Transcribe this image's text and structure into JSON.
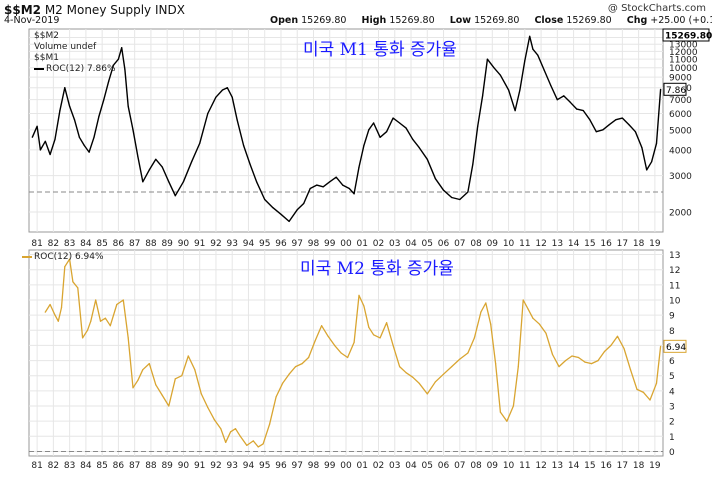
{
  "header": {
    "symbol": "$$M2",
    "name": "M2 Money Supply  INDX",
    "date": "4-Nov-2019",
    "brand": "@ StockCharts.com",
    "open_label": "Open",
    "open": "15269.80",
    "high_label": "High",
    "high": "15269.80",
    "low_label": "Low",
    "low": "15269.80",
    "close_label": "Close",
    "close": "15269.80",
    "chg_label": "Chg",
    "chg": "+25.00 (+0.16%)"
  },
  "legend_top": {
    "line1": "$$M2",
    "line2": "Volume undef",
    "line3": "$$M1",
    "line4": "ROC(12) 7.86%"
  },
  "legend_bottom": {
    "line1": "ROC(12) 6.94%"
  },
  "annotations": {
    "top": "미국 M1 통화 증가율",
    "bottom": "미국 M2 통화 증가율"
  },
  "colors": {
    "top_series": "#000000",
    "bottom_series": "#d9a531",
    "ref_line": "#888888",
    "grid": "#e6e6e6",
    "last_box_top": "#000000",
    "last_box_bottom": "#d9a531",
    "annotation": "#1a1aff"
  },
  "chart_data": [
    {
      "type": "line",
      "series_name": "ROC(12) 7.86%",
      "y_scale": "log",
      "yticks": [
        2000,
        3000,
        4000,
        5000,
        6000,
        7000,
        8000,
        9000,
        10000,
        11000,
        12000,
        13000,
        14000
      ],
      "ylim": [
        1600,
        15400
      ],
      "x_tick_labels": [
        "81",
        "82",
        "83",
        "84",
        "85",
        "86",
        "87",
        "88",
        "89",
        "90",
        "91",
        "92",
        "93",
        "94",
        "95",
        "96",
        "97",
        "98",
        "99",
        "00",
        "01",
        "02",
        "03",
        "04",
        "05",
        "06",
        "07",
        "08",
        "09",
        "10",
        "11",
        "12",
        "13",
        "14",
        "15",
        "16",
        "17",
        "18",
        "19"
      ],
      "xlim": [
        1981.0,
        2020.0
      ],
      "reference_line": 2500,
      "last_value_box": "15269.80",
      "last_value_label": "7.86",
      "x": [
        1981.2,
        1981.5,
        1981.7,
        1982.0,
        1982.3,
        1982.6,
        1982.9,
        1983.2,
        1983.5,
        1983.8,
        1984.1,
        1984.4,
        1984.7,
        1985.0,
        1985.3,
        1985.6,
        1985.9,
        1986.2,
        1986.5,
        1986.7,
        1986.9,
        1987.1,
        1987.4,
        1987.7,
        1988.0,
        1988.4,
        1988.8,
        1989.2,
        1989.6,
        1990.0,
        1990.5,
        1991.0,
        1991.5,
        1992.0,
        1992.5,
        1992.9,
        1993.2,
        1993.5,
        1993.8,
        1994.2,
        1994.6,
        1995.0,
        1995.5,
        1996.0,
        1996.5,
        1997.0,
        1997.5,
        1997.9,
        1998.3,
        1998.7,
        1999.1,
        1999.5,
        1999.9,
        2000.3,
        2000.7,
        2001.0,
        2001.3,
        2001.6,
        2001.9,
        2002.2,
        2002.6,
        2003.0,
        2003.4,
        2003.8,
        2004.2,
        2004.6,
        2005.0,
        2005.5,
        2006.0,
        2006.5,
        2007.0,
        2007.5,
        2008.0,
        2008.3,
        2008.6,
        2008.9,
        2009.2,
        2009.6,
        2010.0,
        2010.5,
        2010.9,
        2011.2,
        2011.5,
        2011.8,
        2012.0,
        2012.3,
        2012.7,
        2013.1,
        2013.5,
        2013.9,
        2014.3,
        2014.7,
        2015.1,
        2015.5,
        2015.9,
        2016.3,
        2016.7,
        2017.1,
        2017.5,
        2017.9,
        2018.3,
        2018.7,
        2019.0,
        2019.3,
        2019.6,
        2019.85
      ],
      "values": [
        4600,
        5200,
        4000,
        4400,
        3800,
        4500,
        6200,
        8000,
        6500,
        5600,
        4600,
        4200,
        3900,
        4600,
        5800,
        7000,
        8600,
        10300,
        11000,
        12500,
        9800,
        6500,
        5000,
        3700,
        2800,
        3200,
        3600,
        3300,
        2800,
        2400,
        2800,
        3500,
        4300,
        6000,
        7200,
        7800,
        8000,
        7200,
        5600,
        4200,
        3400,
        2800,
        2300,
        2100,
        1950,
        1800,
        2050,
        2200,
        2600,
        2700,
        2650,
        2800,
        2950,
        2700,
        2600,
        2450,
        3300,
        4200,
        5000,
        5400,
        4600,
        4900,
        5700,
        5400,
        5100,
        4500,
        4100,
        3600,
        2900,
        2550,
        2350,
        2300,
        2500,
        3400,
        5200,
        7300,
        11000,
        10000,
        9200,
        7800,
        6200,
        7800,
        10800,
        14200,
        12300,
        11500,
        9700,
        8200,
        7000,
        7300,
        6800,
        6300,
        6200,
        5600,
        4900,
        5000,
        5300,
        5600,
        5700,
        5300,
        4900,
        4100,
        3200,
        3500,
        4300,
        7860
      ]
    },
    {
      "type": "line",
      "series_name": "ROC(12) 6.94%",
      "yticks": [
        0,
        1,
        2,
        3,
        4,
        5,
        6,
        7,
        8,
        9,
        10,
        11,
        12,
        13
      ],
      "ylim": [
        -0.3,
        13.3
      ],
      "x_tick_labels": [
        "81",
        "82",
        "83",
        "84",
        "85",
        "86",
        "87",
        "88",
        "89",
        "90",
        "91",
        "92",
        "93",
        "94",
        "95",
        "96",
        "97",
        "98",
        "99",
        "00",
        "01",
        "02",
        "03",
        "04",
        "05",
        "06",
        "07",
        "08",
        "09",
        "10",
        "11",
        "12",
        "13",
        "14",
        "15",
        "16",
        "17",
        "18",
        "19"
      ],
      "xlim": [
        1981.0,
        2020.0
      ],
      "reference_line": 0,
      "last_value_label": "6.94",
      "x": [
        1982.0,
        1982.3,
        1982.6,
        1982.8,
        1983.0,
        1983.2,
        1983.5,
        1983.7,
        1984.0,
        1984.3,
        1984.6,
        1984.8,
        1985.1,
        1985.4,
        1985.7,
        1986.0,
        1986.4,
        1986.8,
        1987.1,
        1987.4,
        1987.7,
        1988.0,
        1988.4,
        1988.8,
        1989.2,
        1989.6,
        1990.0,
        1990.4,
        1990.8,
        1991.2,
        1991.6,
        1992.0,
        1992.4,
        1992.8,
        1993.1,
        1993.4,
        1993.7,
        1994.0,
        1994.4,
        1994.8,
        1995.1,
        1995.4,
        1995.8,
        1996.2,
        1996.6,
        1997.0,
        1997.4,
        1997.8,
        1998.2,
        1998.6,
        1999.0,
        1999.4,
        1999.8,
        2000.2,
        2000.6,
        2001.0,
        2001.3,
        2001.6,
        2001.9,
        2002.2,
        2002.6,
        2003.0,
        2003.4,
        2003.8,
        2004.2,
        2004.6,
        2005.0,
        2005.5,
        2006.0,
        2006.5,
        2007.0,
        2007.5,
        2008.0,
        2008.4,
        2008.8,
        2009.1,
        2009.4,
        2009.7,
        2010.0,
        2010.4,
        2010.8,
        2011.1,
        2011.4,
        2011.7,
        2012.0,
        2012.4,
        2012.8,
        2013.2,
        2013.6,
        2014.0,
        2014.4,
        2014.8,
        2015.2,
        2015.6,
        2016.0,
        2016.4,
        2016.8,
        2017.2,
        2017.6,
        2018.0,
        2018.4,
        2018.8,
        2019.2,
        2019.6,
        2019.85
      ],
      "values": [
        9.2,
        9.7,
        9.0,
        8.6,
        9.5,
        12.2,
        12.7,
        11.2,
        10.8,
        7.5,
        8.0,
        8.6,
        10.0,
        8.6,
        8.8,
        8.3,
        9.7,
        10.0,
        7.5,
        4.2,
        4.7,
        5.4,
        5.8,
        4.4,
        3.7,
        3.0,
        4.8,
        5.0,
        6.3,
        5.4,
        3.8,
        2.9,
        2.1,
        1.5,
        0.6,
        1.3,
        1.5,
        1.0,
        0.4,
        0.7,
        0.3,
        0.5,
        1.8,
        3.6,
        4.5,
        5.1,
        5.6,
        5.8,
        6.2,
        7.3,
        8.3,
        7.6,
        7.0,
        6.5,
        6.2,
        7.2,
        10.3,
        9.6,
        8.2,
        7.7,
        7.5,
        8.5,
        7.0,
        5.6,
        5.2,
        4.9,
        4.5,
        3.8,
        4.6,
        5.1,
        5.6,
        6.1,
        6.5,
        7.5,
        9.2,
        9.8,
        8.4,
        5.8,
        2.6,
        2.0,
        3.0,
        5.6,
        10.0,
        9.4,
        8.8,
        8.4,
        7.8,
        6.4,
        5.6,
        6.0,
        6.3,
        6.2,
        5.9,
        5.8,
        6.0,
        6.6,
        7.0,
        7.6,
        6.8,
        5.4,
        4.1,
        3.9,
        3.4,
        4.5,
        6.94
      ]
    }
  ]
}
